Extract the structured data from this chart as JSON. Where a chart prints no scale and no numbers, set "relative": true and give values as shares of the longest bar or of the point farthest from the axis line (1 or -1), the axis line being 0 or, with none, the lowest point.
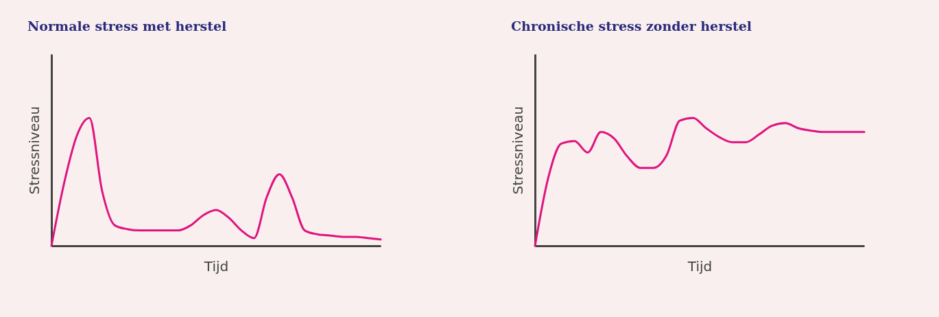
{
  "chart_data": [
    {
      "type": "line",
      "title": "Normale stress met herstel",
      "xlabel": "Tijd",
      "ylabel": "Stressniveau",
      "relative": true,
      "tick_labels": false,
      "color": "#e0137f",
      "categories": [
        null,
        null,
        null,
        null,
        null,
        null,
        null,
        null,
        null,
        null,
        null,
        null,
        null,
        null,
        null,
        null,
        null,
        null,
        null,
        null,
        null,
        null,
        null,
        null,
        null,
        null,
        null
      ],
      "values": [
        0,
        0.49,
        0.86,
        1.0,
        0.43,
        0.16,
        0.13,
        0.12,
        0.12,
        0.12,
        0.12,
        0.16,
        0.24,
        0.28,
        0.22,
        0.12,
        0.06,
        0.38,
        0.56,
        0.38,
        0.12,
        0.09,
        0.08,
        0.07,
        0.07,
        0.06,
        0.05
      ]
    },
    {
      "type": "line",
      "title": "Chronische stress zonder herstel",
      "xlabel": "Tijd",
      "ylabel": "Stressniveau",
      "relative": true,
      "tick_labels": false,
      "color": "#e0137f",
      "categories": [
        null,
        null,
        null,
        null,
        null,
        null,
        null,
        null,
        null,
        null,
        null,
        null,
        null,
        null,
        null,
        null,
        null,
        null,
        null,
        null,
        null,
        null,
        null,
        null,
        null,
        null
      ],
      "values": [
        0,
        0.53,
        0.8,
        0.82,
        0.73,
        0.89,
        0.84,
        0.7,
        0.61,
        0.61,
        0.71,
        0.98,
        1.0,
        0.92,
        0.85,
        0.81,
        0.81,
        0.87,
        0.94,
        0.96,
        0.92,
        0.9,
        0.89,
        0.89,
        0.89,
        0.89
      ]
    }
  ]
}
